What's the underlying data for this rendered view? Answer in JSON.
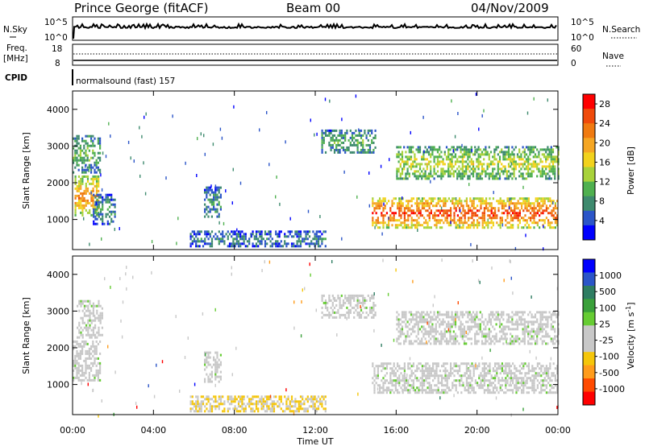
{
  "header": {
    "station": "Prince George (fitACF)",
    "beam": "Beam 00",
    "date": "04/Nov/2009"
  },
  "panels": {
    "nsky_label": "N.Sky",
    "nsky_ticks": [
      "10^5",
      "10^0"
    ],
    "nsearch_label": "N.Search",
    "nsearch_ticks": [
      "10^5",
      "10^0"
    ],
    "freq_label": "Freq.",
    "freq_unit": "[MHz]",
    "freq_ticks": [
      "18",
      "8"
    ],
    "nave_label": "Nave",
    "nave_ticks": [
      "60",
      "0"
    ],
    "cpid_label": "CPID",
    "cpid_value": "normalsound (fast) 157"
  },
  "colors": {
    "power": [
      "#0000ff",
      "#2b55c8",
      "#3e8a6e",
      "#4fb04f",
      "#a8d23a",
      "#f2d21c",
      "#f5a623",
      "#f07a10",
      "#f04a0a",
      "#ff0000"
    ],
    "velocity": [
      "#ff0000",
      "#ff4a00",
      "#ff9c1c",
      "#f5c60a",
      "#c8c8c8",
      "#c8c8c8",
      "#66cc33",
      "#3aa03a",
      "#2e7d62",
      "#2b55c8",
      "#0000ff"
    ]
  },
  "chart_data": [
    {
      "type": "heatmap",
      "ylabel": "Slant Range [km]",
      "ylim": [
        180,
        4500
      ],
      "y_ticks": [
        "1000",
        "2000",
        "3000",
        "4000"
      ],
      "x_ticks": [
        "00:00",
        "04:00",
        "08:00",
        "12:00",
        "16:00",
        "20:00",
        "00:00"
      ],
      "xlim_hours": [
        0,
        24
      ],
      "colorbar_label": "Power [dB]",
      "colorbar_ticks": [
        "4",
        "8",
        "12",
        "16",
        "20",
        "24",
        "28"
      ],
      "colorbar_range": [
        0,
        30
      ],
      "regions": [
        {
          "t0": 0.0,
          "t1": 1.4,
          "r0": 2300,
          "r1": 3300,
          "level": 0.35
        },
        {
          "t0": 0.1,
          "t1": 1.3,
          "r0": 1100,
          "r1": 2200,
          "level": 0.75
        },
        {
          "t0": 1.0,
          "t1": 2.1,
          "r0": 900,
          "r1": 1700,
          "level": 0.25
        },
        {
          "t0": 6.5,
          "t1": 7.3,
          "r0": 1100,
          "r1": 1900,
          "level": 0.25
        },
        {
          "t0": 5.8,
          "t1": 12.5,
          "r0": 250,
          "r1": 700,
          "level": 0.2
        },
        {
          "t0": 12.3,
          "t1": 15.0,
          "r0": 2800,
          "r1": 3450,
          "level": 0.3
        },
        {
          "t0": 14.8,
          "t1": 24.0,
          "r0": 800,
          "r1": 1600,
          "level": 0.92
        },
        {
          "t0": 16.0,
          "t1": 24.0,
          "r0": 2100,
          "r1": 3000,
          "level": 0.5
        }
      ]
    },
    {
      "type": "heatmap",
      "ylabel": "Slant Range [km]",
      "ylim": [
        180,
        4500
      ],
      "y_ticks": [
        "1000",
        "2000",
        "3000",
        "4000"
      ],
      "x_ticks": [
        "00:00",
        "04:00",
        "08:00",
        "12:00",
        "16:00",
        "20:00",
        "00:00"
      ],
      "xlim_hours": [
        0,
        24
      ],
      "xlabel": "Time UT",
      "colorbar_label": "Velocity [m s^-1]",
      "colorbar_ticks": [
        "1000",
        "500",
        "100",
        "25",
        "-25",
        "-100",
        "-500",
        "-1000"
      ],
      "regions": [
        {
          "t0": 0.0,
          "t1": 1.4,
          "r0": 1100,
          "r1": 2200,
          "level": 0.0
        },
        {
          "t0": 0.2,
          "t1": 1.5,
          "r0": 2300,
          "r1": 3300,
          "level": 0.0
        },
        {
          "t0": 6.5,
          "t1": 7.3,
          "r0": 1100,
          "r1": 1900,
          "level": 0.0
        },
        {
          "t0": 5.8,
          "t1": 12.5,
          "r0": 250,
          "r1": 700,
          "level": -0.3
        },
        {
          "t0": 12.3,
          "t1": 15.0,
          "r0": 2800,
          "r1": 3450,
          "level": 0.0
        },
        {
          "t0": 14.8,
          "t1": 24.0,
          "r0": 800,
          "r1": 1600,
          "level": 0.0
        },
        {
          "t0": 16.0,
          "t1": 24.0,
          "r0": 2100,
          "r1": 3000,
          "level": 0.0
        }
      ]
    }
  ]
}
